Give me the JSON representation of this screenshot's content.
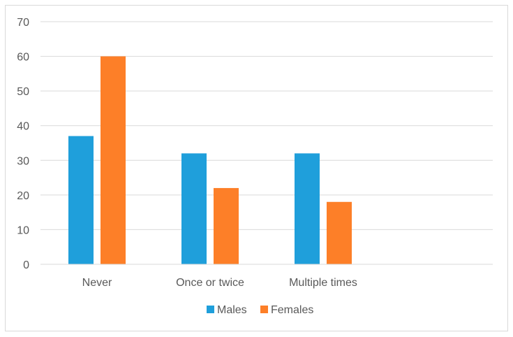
{
  "chart_data": {
    "type": "bar",
    "title": "",
    "xlabel": "",
    "ylabel": "",
    "categories": [
      "Never",
      "Once or twice",
      "Multiple times",
      ""
    ],
    "series": [
      {
        "name": "Males",
        "values": [
          37,
          32,
          32,
          null
        ],
        "color": "#1f9fdb"
      },
      {
        "name": "Females",
        "values": [
          60,
          22,
          18,
          null
        ],
        "color": "#fd7f28"
      }
    ],
    "ylim": [
      0,
      70
    ],
    "yticks": [
      0,
      10,
      20,
      30,
      40,
      50,
      60,
      70
    ],
    "grid": true,
    "legend_position": "bottom"
  }
}
